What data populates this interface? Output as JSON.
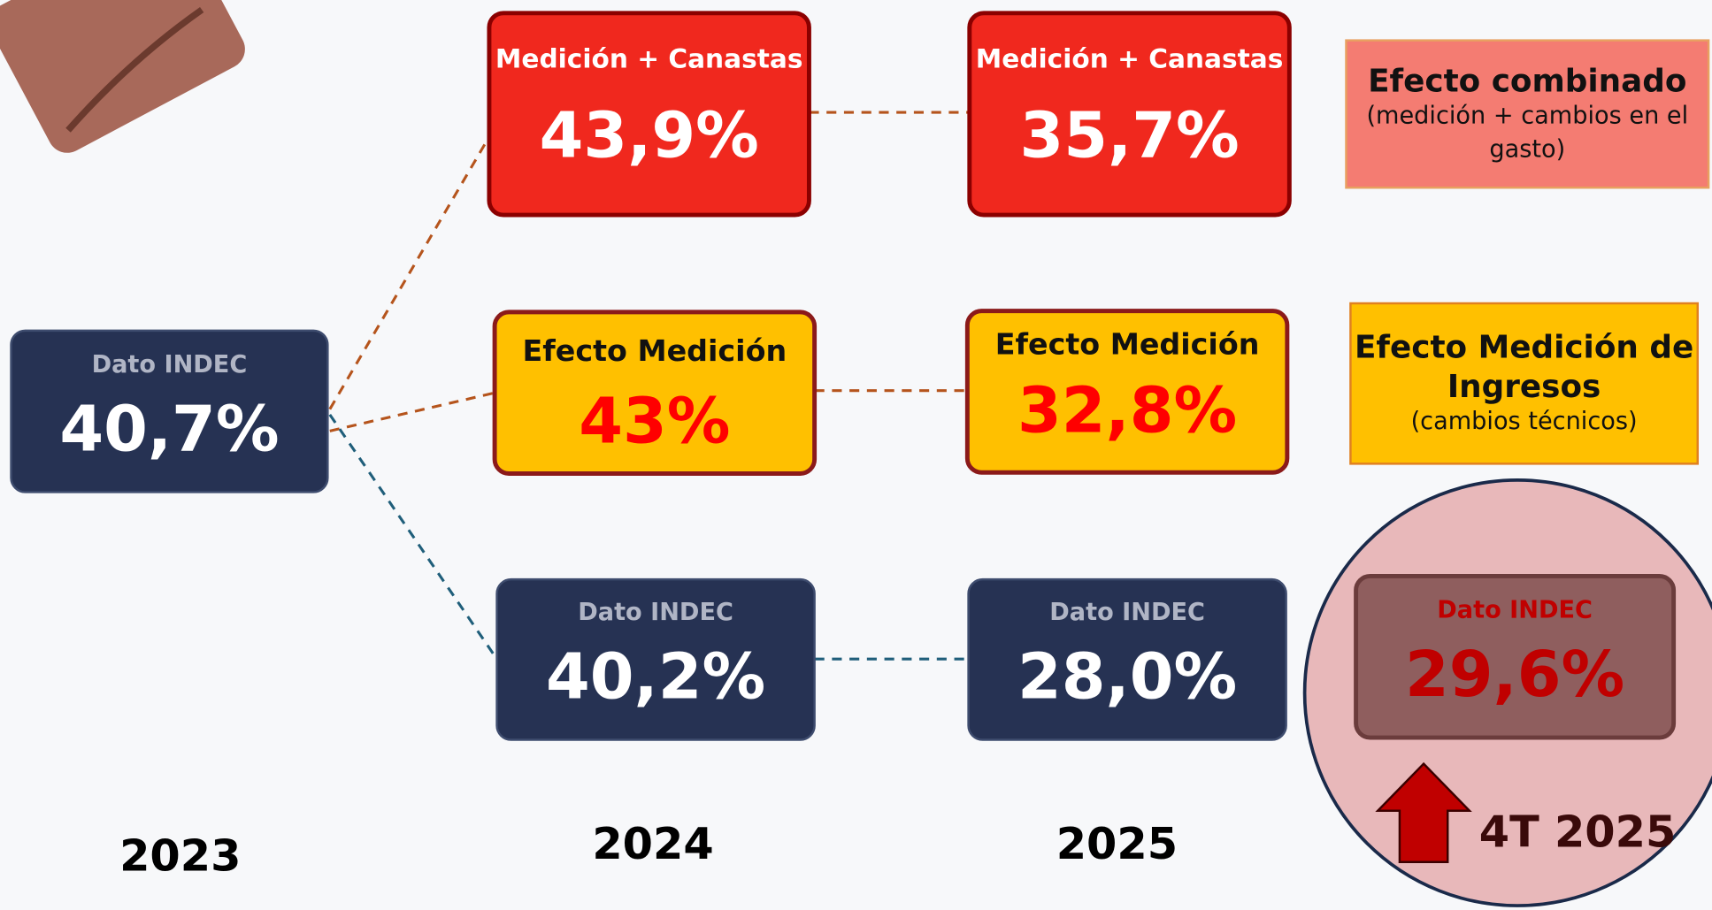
{
  "nodes": [
    {
      "label": "Dato INDEC",
      "value": "40,7%"
    },
    {
      "label": "Medición + Canastas",
      "value": "43,9%"
    },
    {
      "label": "Efecto Medición",
      "value": "43%"
    },
    {
      "label": "Dato INDEC",
      "value": "40,2%"
    },
    {
      "label": "Medición + Canastas",
      "value": "35,7%"
    },
    {
      "label": "Efecto Medición",
      "value": "32,8%"
    },
    {
      "label": "Dato INDEC",
      "value": "28,0%"
    },
    {
      "label": "Dato INDEC",
      "value": "29,6%"
    }
  ],
  "years": [
    "2023",
    "2024",
    "2025"
  ],
  "highlight": "4T 2025",
  "legend": [
    {
      "title": "Efecto combinado",
      "note": "(medición + cambios en el gasto)"
    },
    {
      "title": "Efecto Medición de Ingresos",
      "note": "(cambios técnicos)"
    }
  ]
}
